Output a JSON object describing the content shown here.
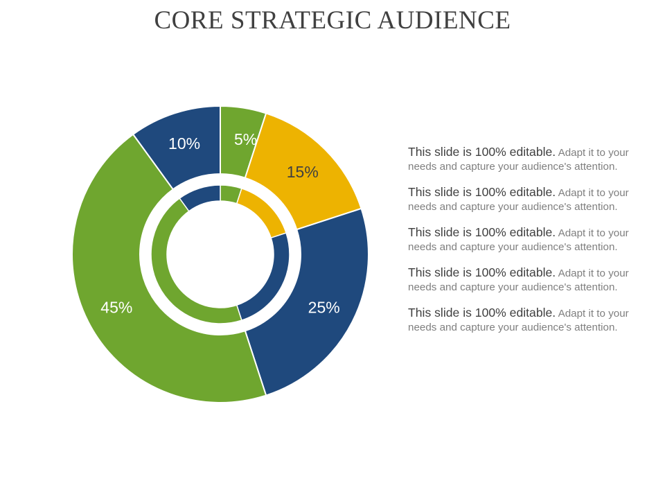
{
  "title": "CORE STRATEGIC AUDIENCE",
  "chart_data": {
    "type": "pie",
    "title": "CORE STRATEGIC AUDIENCE",
    "variant": "double-donut",
    "outer_ring": {
      "slices": [
        {
          "label": "5%",
          "value": 5,
          "color": "#6FA62F",
          "label_color": "#ffffff"
        },
        {
          "label": "15%",
          "value": 15,
          "color": "#EDB301",
          "label_color": "#404040"
        },
        {
          "label": "25%",
          "value": 25,
          "color": "#1F497D",
          "label_color": "#ffffff"
        },
        {
          "label": "45%",
          "value": 45,
          "color": "#6FA62F",
          "label_color": "#ffffff"
        },
        {
          "label": "10%",
          "value": 10,
          "color": "#1F497D",
          "label_color": "#ffffff"
        }
      ]
    },
    "inner_ring": {
      "slices": [
        {
          "value": 5,
          "color": "#6FA62F"
        },
        {
          "value": 15,
          "color": "#EDB301"
        },
        {
          "value": 25,
          "color": "#1F497D"
        },
        {
          "value": 45,
          "color": "#6FA62F"
        },
        {
          "value": 10,
          "color": "#1F497D"
        }
      ]
    }
  },
  "text_items": [
    {
      "lead": "This slide is 100% editable.",
      "body": " Adapt it to your needs and capture your audience's attention."
    },
    {
      "lead": "This slide is 100% editable.",
      "body": " Adapt it to your needs and capture your audience's attention."
    },
    {
      "lead": "This slide is 100% editable.",
      "body": " Adapt it to your needs and capture your audience's attention."
    },
    {
      "lead": "This slide is 100% editable.",
      "body": " Adapt it to your needs and capture your audience's attention."
    },
    {
      "lead": "This slide is 100% editable.",
      "body": " Adapt it to your needs and capture your audience's attention."
    }
  ]
}
